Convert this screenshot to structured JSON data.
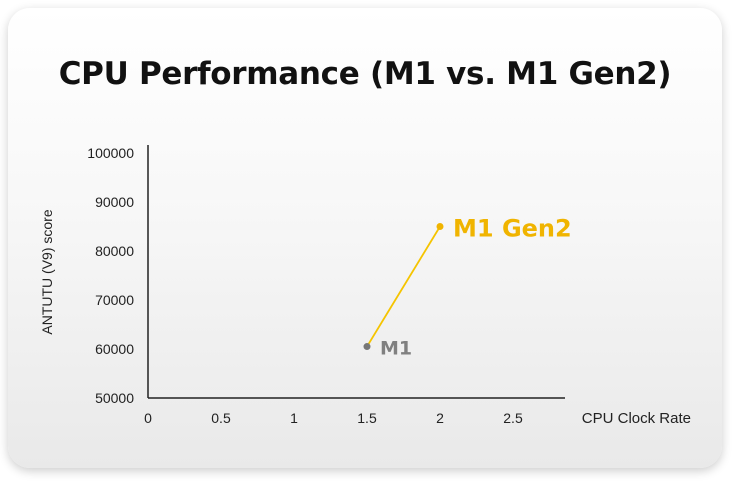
{
  "chart_data": {
    "type": "scatter",
    "title": "CPU Performance (M1 vs. M1 Gen2)",
    "xlabel": "CPU Clock Rate",
    "ylabel": "ANTUTU (V9) score",
    "xlim": [
      0,
      2.75
    ],
    "ylim": [
      50000,
      100000
    ],
    "x_ticks": [
      "0",
      "0.5",
      "1",
      "1.5",
      "2",
      "2.5"
    ],
    "y_ticks": [
      "50000",
      "60000",
      "70000",
      "80000",
      "90000",
      "100000"
    ],
    "grid": false,
    "points": [
      {
        "label": "M1",
        "x": 1.5,
        "y": 60500,
        "color": "#777777"
      },
      {
        "label": "M1 Gen2",
        "x": 2.0,
        "y": 85000,
        "color": "#f0b400"
      }
    ],
    "connector_color": "#f5c400"
  }
}
